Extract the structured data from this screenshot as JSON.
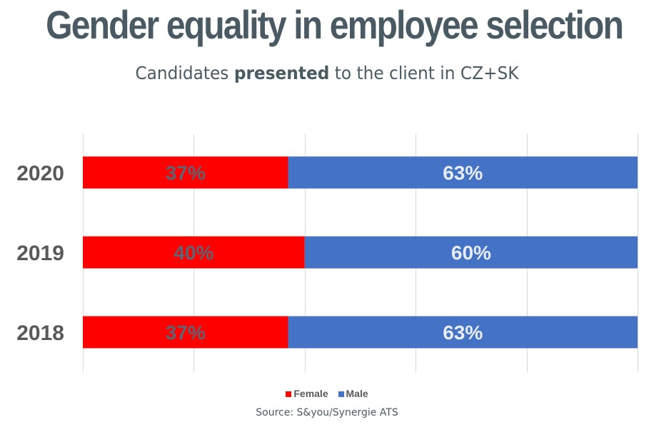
{
  "title": "Gender equality in employee selection",
  "subtitle": {
    "prefix": "Candidates ",
    "emphasis": "presented",
    "suffix": " to the client in CZ+SK"
  },
  "source": "Source: S&you/Synergie ATS",
  "colors": {
    "female": "#ff0000",
    "male": "#4472c4",
    "grid": "#d9d9d9",
    "year_label": "#595959",
    "female_label": "#5b6470",
    "male_label": "#e8ecf5"
  },
  "chart_data": {
    "type": "bar",
    "orientation": "horizontal",
    "stacked": true,
    "percent_stacked": true,
    "categories": [
      "2020",
      "2019",
      "2018"
    ],
    "series": [
      {
        "name": "Female",
        "values": [
          37,
          40,
          37
        ],
        "labels": [
          "37%",
          "40%",
          "37%"
        ]
      },
      {
        "name": "Male",
        "values": [
          63,
          60,
          63
        ],
        "labels": [
          "63%",
          "60%",
          "63%"
        ]
      }
    ],
    "xlim": [
      0,
      100
    ],
    "grid": true,
    "legend": "bottom"
  }
}
